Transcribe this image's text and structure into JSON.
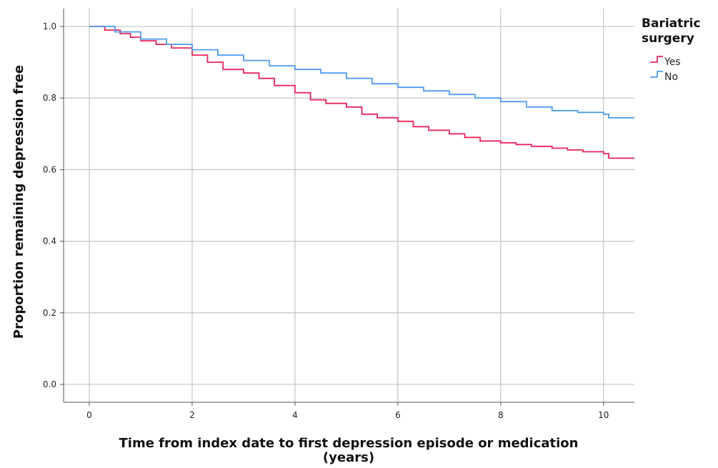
{
  "chart_data": {
    "type": "line",
    "step": true,
    "xlabel": [
      "Time from index date to first depression episode or medication",
      "(years)"
    ],
    "ylabel": "Proportion remaining depression free",
    "xlim": [
      -0.5,
      10.6
    ],
    "ylim": [
      -0.05,
      1.05
    ],
    "x_ticks": [
      0,
      2,
      4,
      6,
      8,
      10
    ],
    "y_ticks": [
      0.0,
      0.2,
      0.4,
      0.6,
      0.8,
      1.0
    ],
    "x_tick_labels": [
      "0",
      "2",
      "4",
      "6",
      "8",
      "10"
    ],
    "y_tick_labels": [
      "0.0",
      "0.2",
      "0.4",
      "0.6",
      "0.8",
      "1.0"
    ],
    "grid": true,
    "legend": {
      "title": [
        "Bariatric",
        "surgery"
      ],
      "position": "top-right-outside"
    },
    "series": [
      {
        "name": "Yes",
        "color": "#e8255a",
        "x": [
          0,
          0.3,
          0.6,
          0.8,
          1.0,
          1.3,
          1.6,
          2.0,
          2.3,
          2.6,
          3.0,
          3.3,
          3.6,
          4.0,
          4.3,
          4.6,
          5.0,
          5.3,
          5.6,
          6.0,
          6.3,
          6.6,
          7.0,
          7.3,
          7.6,
          8.0,
          8.3,
          8.6,
          9.0,
          9.3,
          9.6,
          10.0,
          10.1,
          10.6
        ],
        "y": [
          1.0,
          0.99,
          0.98,
          0.97,
          0.96,
          0.95,
          0.94,
          0.92,
          0.9,
          0.88,
          0.87,
          0.855,
          0.835,
          0.815,
          0.795,
          0.785,
          0.775,
          0.755,
          0.745,
          0.735,
          0.72,
          0.71,
          0.7,
          0.69,
          0.68,
          0.675,
          0.67,
          0.665,
          0.66,
          0.655,
          0.65,
          0.645,
          0.632,
          0.632
        ]
      },
      {
        "name": "No",
        "color": "#4f9bf0",
        "x": [
          0,
          0.5,
          1.0,
          1.5,
          2.0,
          2.5,
          3.0,
          3.5,
          4.0,
          4.5,
          5.0,
          5.5,
          6.0,
          6.5,
          7.0,
          7.5,
          8.0,
          8.5,
          9.0,
          9.5,
          10.0,
          10.1,
          10.6
        ],
        "y": [
          1.0,
          0.985,
          0.965,
          0.95,
          0.935,
          0.92,
          0.905,
          0.89,
          0.88,
          0.87,
          0.855,
          0.84,
          0.83,
          0.82,
          0.81,
          0.8,
          0.79,
          0.775,
          0.765,
          0.76,
          0.755,
          0.745,
          0.745
        ]
      }
    ]
  }
}
